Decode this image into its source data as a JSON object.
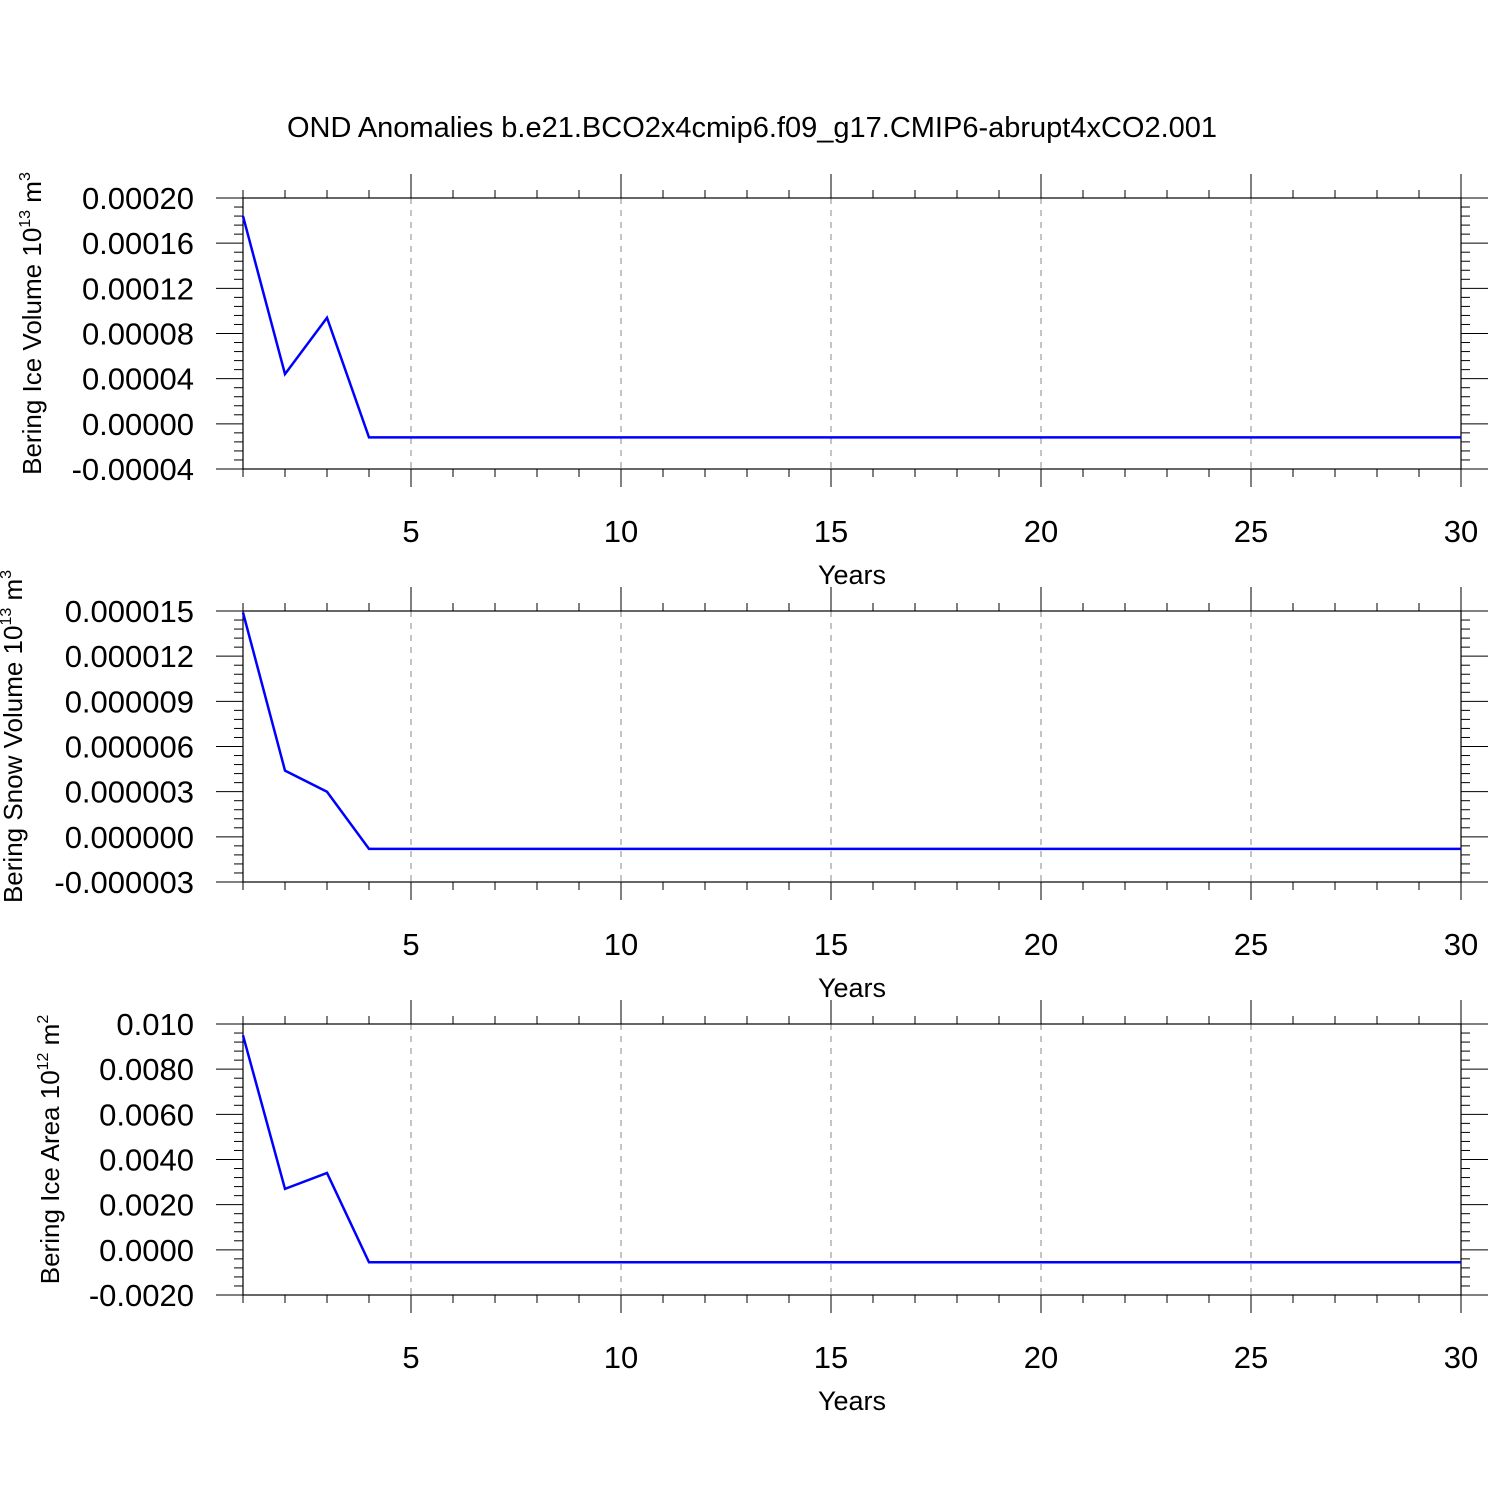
{
  "title": "OND Anomalies b.e21.BCO2x4cmip6.f09_g17.CMIP6-abrupt4xCO2.001",
  "colors": {
    "line": "#0000ff",
    "axis": "#000000",
    "grid": "#888888"
  },
  "chart_data": [
    {
      "type": "line",
      "ylabel": "Bering Ice Volume 10",
      "ylabel_exp": "13",
      "ylabel_unit": " m",
      "ylabel_unit_exp": "3",
      "xlabel": "Years",
      "xlim": [
        1,
        30
      ],
      "ylim": [
        -4e-05,
        0.0002
      ],
      "xticks": [
        5,
        10,
        15,
        20,
        25,
        30
      ],
      "xtick_labels": [
        "5",
        "10",
        "15",
        "20",
        "25",
        "30"
      ],
      "yticks": [
        -4e-05,
        0,
        4e-05,
        8e-05,
        0.00012,
        0.00016,
        0.0002
      ],
      "ytick_labels": [
        "-0.00004",
        "0.00000",
        "0.00004",
        "0.00008",
        "0.00012",
        "0.00016",
        "0.00020"
      ],
      "x": [
        1,
        2,
        3,
        4,
        5,
        6,
        7,
        8,
        9,
        10,
        11,
        12,
        13,
        14,
        15,
        16,
        17,
        18,
        19,
        20,
        21,
        22,
        23,
        24,
        25,
        26,
        27,
        28,
        29,
        30
      ],
      "y": [
        0.000184,
        4.4e-05,
        9.4e-05,
        -1.2e-05,
        -1.2e-05,
        -1.2e-05,
        -1.2e-05,
        -1.2e-05,
        -1.2e-05,
        -1.2e-05,
        -1.2e-05,
        -1.2e-05,
        -1.2e-05,
        -1.2e-05,
        -1.2e-05,
        -1.2e-05,
        -1.2e-05,
        -1.2e-05,
        -1.2e-05,
        -1.2e-05,
        -1.2e-05,
        -1.2e-05,
        -1.2e-05,
        -1.2e-05,
        -1.2e-05,
        -1.2e-05,
        -1.2e-05,
        -1.2e-05,
        -1.2e-05,
        -1.2e-05
      ],
      "grid": "vertical dashed at major x ticks"
    },
    {
      "type": "line",
      "ylabel": "Bering Snow Volume 10",
      "ylabel_exp": "13",
      "ylabel_unit": " m",
      "ylabel_unit_exp": "3",
      "xlabel": "Years",
      "xlim": [
        1,
        30
      ],
      "ylim": [
        -3e-06,
        1.5e-05
      ],
      "xticks": [
        5,
        10,
        15,
        20,
        25,
        30
      ],
      "xtick_labels": [
        "5",
        "10",
        "15",
        "20",
        "25",
        "30"
      ],
      "yticks": [
        -3e-06,
        0,
        3e-06,
        6e-06,
        9e-06,
        1.2e-05,
        1.5e-05
      ],
      "ytick_labels": [
        "-0.000003",
        "0.000000",
        "0.000003",
        "0.000006",
        "0.000009",
        "0.000012",
        "0.000015"
      ],
      "x": [
        1,
        2,
        3,
        4,
        5,
        6,
        7,
        8,
        9,
        10,
        11,
        12,
        13,
        14,
        15,
        16,
        17,
        18,
        19,
        20,
        21,
        22,
        23,
        24,
        25,
        26,
        27,
        28,
        29,
        30
      ],
      "y": [
        1.49e-05,
        4.4e-06,
        3e-06,
        -8e-07,
        -8e-07,
        -8e-07,
        -8e-07,
        -8e-07,
        -8e-07,
        -8e-07,
        -8e-07,
        -8e-07,
        -8e-07,
        -8e-07,
        -8e-07,
        -8e-07,
        -8e-07,
        -8e-07,
        -8e-07,
        -8e-07,
        -8e-07,
        -8e-07,
        -8e-07,
        -8e-07,
        -8e-07,
        -8e-07,
        -8e-07,
        -8e-07,
        -8e-07,
        -8e-07
      ],
      "grid": "vertical dashed at major x ticks"
    },
    {
      "type": "line",
      "ylabel": "Bering Ice Area 10",
      "ylabel_exp": "12",
      "ylabel_unit": " m",
      "ylabel_unit_exp": "2",
      "xlabel": "Years",
      "xlim": [
        1,
        30
      ],
      "ylim": [
        -0.002,
        0.01
      ],
      "xticks": [
        5,
        10,
        15,
        20,
        25,
        30
      ],
      "xtick_labels": [
        "5",
        "10",
        "15",
        "20",
        "25",
        "30"
      ],
      "yticks": [
        -0.002,
        0,
        0.002,
        0.004,
        0.006,
        0.008,
        0.01
      ],
      "ytick_labels": [
        "-0.0020",
        "0.0000",
        "0.0020",
        "0.0040",
        "0.0060",
        "0.0080",
        "0.010"
      ],
      "x": [
        1,
        2,
        3,
        4,
        5,
        6,
        7,
        8,
        9,
        10,
        11,
        12,
        13,
        14,
        15,
        16,
        17,
        18,
        19,
        20,
        21,
        22,
        23,
        24,
        25,
        26,
        27,
        28,
        29,
        30
      ],
      "y": [
        0.0095,
        0.0027,
        0.0034,
        -0.00055,
        -0.00055,
        -0.00055,
        -0.00055,
        -0.00055,
        -0.00055,
        -0.00055,
        -0.00055,
        -0.00055,
        -0.00055,
        -0.00055,
        -0.00055,
        -0.00055,
        -0.00055,
        -0.00055,
        -0.00055,
        -0.00055,
        -0.00055,
        -0.00055,
        -0.00055,
        -0.00055,
        -0.00055,
        -0.00055,
        -0.00055,
        -0.00055,
        -0.00055,
        -0.00055
      ],
      "grid": "vertical dashed at major x ticks"
    }
  ]
}
